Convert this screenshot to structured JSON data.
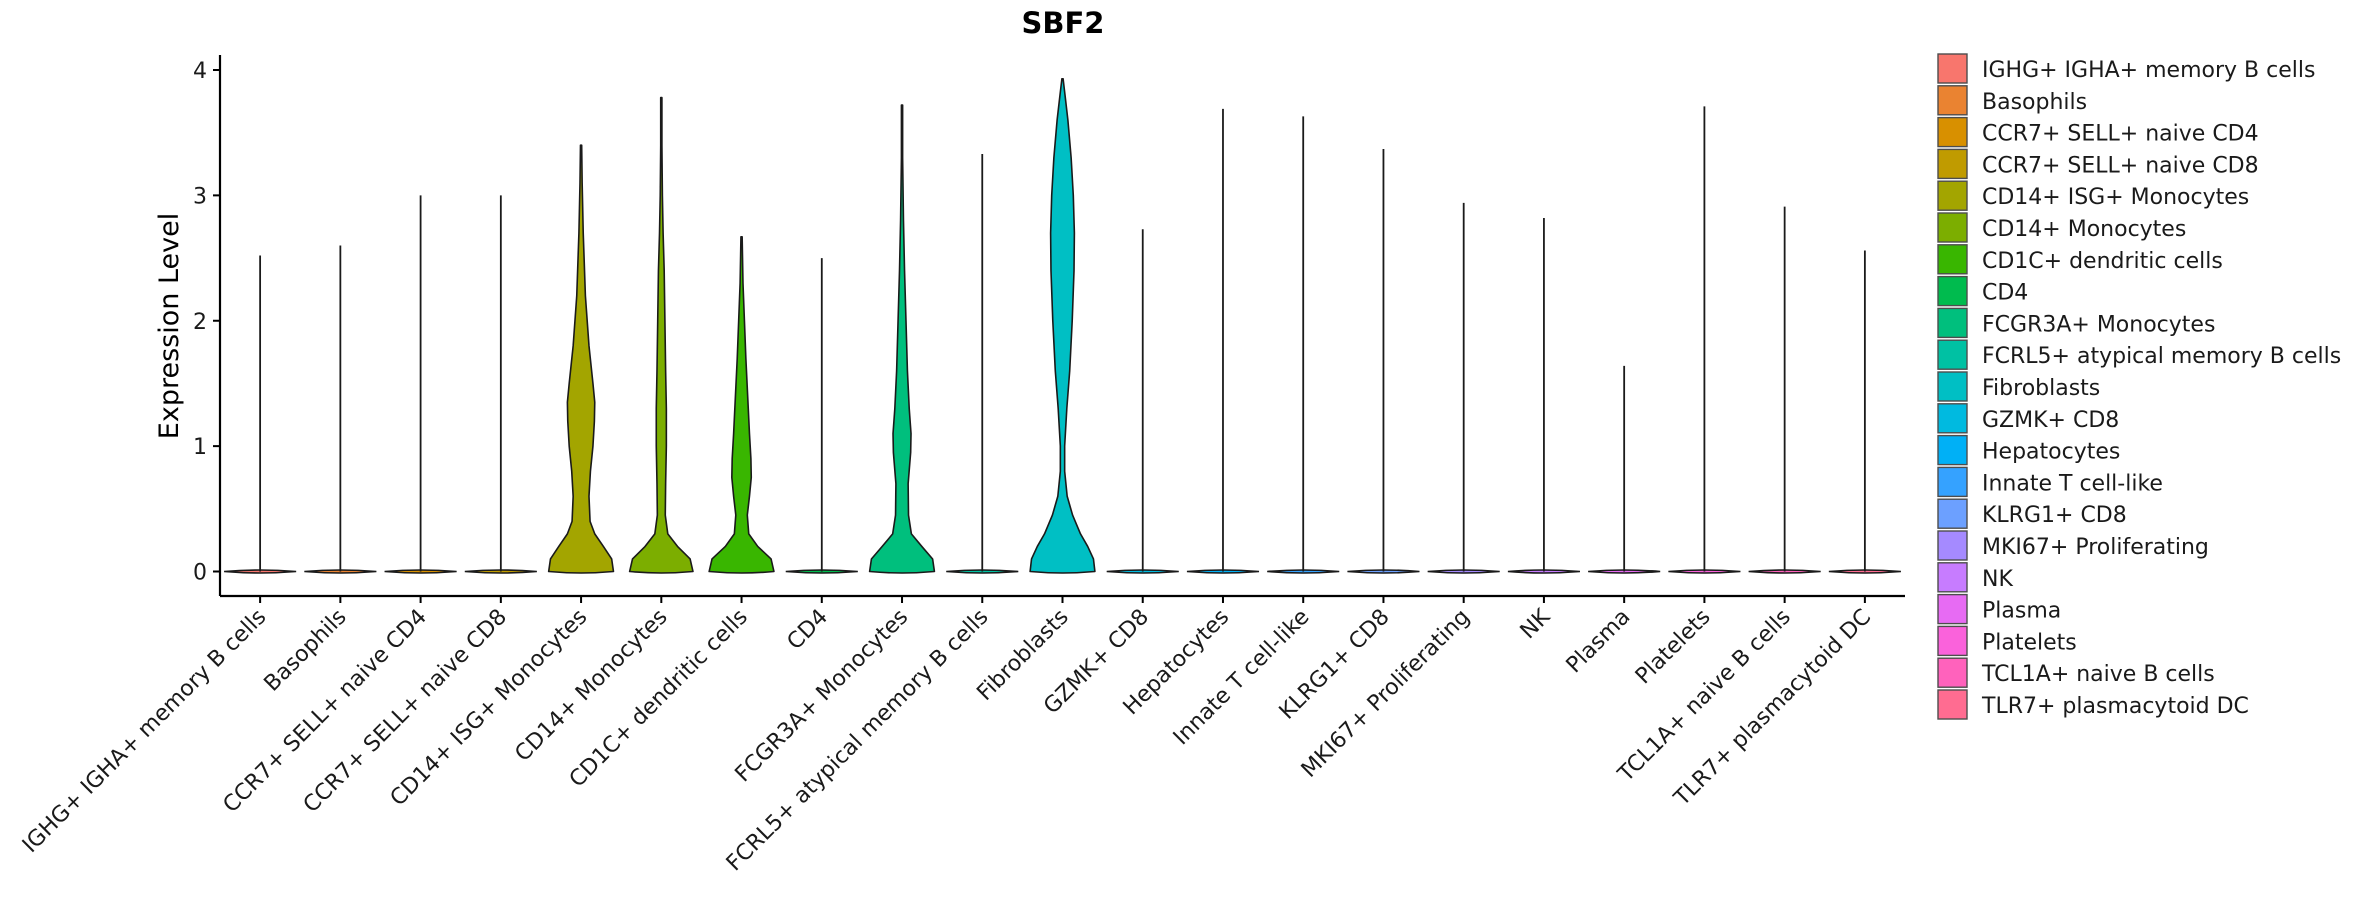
{
  "chart_data": {
    "type": "violin",
    "title": "SBF2",
    "xlabel": "",
    "ylabel": "Expression Level",
    "ylim": [
      -0.2,
      4.12
    ],
    "yticks": [
      0,
      1,
      2,
      3,
      4
    ],
    "ytick_labels": [
      "0",
      "1",
      "2",
      "3",
      "4"
    ],
    "legend_position": "right",
    "categories": [
      " IGHG+ IGHA+ memory B cells",
      "Basophils",
      "CCR7+ SELL+ naive CD4",
      "CCR7+ SELL+ naive CD8",
      "CD14+ ISG+ Monocytes",
      "CD14+ Monocytes",
      "CD1C+ dendritic cells",
      "CD4",
      "FCGR3A+ Monocytes",
      "FCRL5+ atypical memory B cells",
      "Fibroblasts",
      "GZMK+ CD8",
      "Hepatocytes",
      "Innate T cell-like",
      "KLRG1+ CD8",
      "MKI67+ Proliferating",
      "NK",
      "Plasma",
      "Platelets",
      "TCL1A+ naive B cells",
      "TLR7+ plasmacytoid DC"
    ],
    "colors": [
      "#F8766D",
      "#EA8331",
      "#D89000",
      "#C09B00",
      "#A3A500",
      "#7CAE00",
      "#39B600",
      "#00BB4E",
      "#00BF7D",
      "#00C1A3",
      "#00BFC4",
      "#00BAE0",
      "#00B0F6",
      "#35A2FF",
      "#6CA0FF",
      "#A58AFF",
      "#C77CFF",
      "#E76BF3",
      "#FA62DB",
      "#FF62BC",
      "#FF6C91"
    ],
    "max_values": [
      2.52,
      2.6,
      3.0,
      3.0,
      3.4,
      3.78,
      2.67,
      2.5,
      3.72,
      3.33,
      3.93,
      2.73,
      3.69,
      3.63,
      3.37,
      2.94,
      2.82,
      1.64,
      3.71,
      2.91,
      2.56
    ],
    "density_profiles": [
      [],
      [],
      [],
      [],
      [
        [
          0,
          0.9
        ],
        [
          0.1,
          0.85
        ],
        [
          0.2,
          0.62
        ],
        [
          0.3,
          0.38
        ],
        [
          0.4,
          0.25
        ],
        [
          0.6,
          0.22
        ],
        [
          0.8,
          0.26
        ],
        [
          1.0,
          0.33
        ],
        [
          1.2,
          0.37
        ],
        [
          1.35,
          0.38
        ],
        [
          1.5,
          0.33
        ],
        [
          1.8,
          0.22
        ],
        [
          2.2,
          0.12
        ],
        [
          2.7,
          0.06
        ],
        [
          3.1,
          0.03
        ],
        [
          3.4,
          0.01
        ]
      ],
      [
        [
          0,
          0.88
        ],
        [
          0.1,
          0.8
        ],
        [
          0.2,
          0.45
        ],
        [
          0.3,
          0.18
        ],
        [
          0.45,
          0.11
        ],
        [
          0.7,
          0.12
        ],
        [
          1.0,
          0.14
        ],
        [
          1.3,
          0.14
        ],
        [
          1.6,
          0.12
        ],
        [
          2.0,
          0.1
        ],
        [
          2.4,
          0.08
        ],
        [
          2.7,
          0.05
        ],
        [
          3.0,
          0.03
        ],
        [
          3.4,
          0.015
        ],
        [
          3.78,
          0.005
        ]
      ],
      [
        [
          0,
          0.9
        ],
        [
          0.1,
          0.82
        ],
        [
          0.2,
          0.45
        ],
        [
          0.3,
          0.2
        ],
        [
          0.45,
          0.16
        ],
        [
          0.6,
          0.22
        ],
        [
          0.75,
          0.27
        ],
        [
          0.9,
          0.26
        ],
        [
          1.1,
          0.22
        ],
        [
          1.4,
          0.17
        ],
        [
          1.7,
          0.12
        ],
        [
          2.0,
          0.08
        ],
        [
          2.3,
          0.04
        ],
        [
          2.67,
          0.01
        ]
      ],
      [],
      [
        [
          0,
          0.9
        ],
        [
          0.1,
          0.85
        ],
        [
          0.2,
          0.55
        ],
        [
          0.3,
          0.26
        ],
        [
          0.45,
          0.18
        ],
        [
          0.7,
          0.17
        ],
        [
          0.95,
          0.24
        ],
        [
          1.1,
          0.25
        ],
        [
          1.3,
          0.2
        ],
        [
          1.6,
          0.15
        ],
        [
          2.0,
          0.11
        ],
        [
          2.4,
          0.07
        ],
        [
          2.8,
          0.04
        ],
        [
          3.3,
          0.015
        ],
        [
          3.72,
          0.005
        ]
      ],
      [],
      [
        [
          0,
          0.9
        ],
        [
          0.1,
          0.86
        ],
        [
          0.2,
          0.7
        ],
        [
          0.3,
          0.5
        ],
        [
          0.45,
          0.28
        ],
        [
          0.6,
          0.13
        ],
        [
          0.8,
          0.06
        ],
        [
          1.0,
          0.06
        ],
        [
          1.3,
          0.12
        ],
        [
          1.6,
          0.2
        ],
        [
          2.0,
          0.27
        ],
        [
          2.4,
          0.32
        ],
        [
          2.7,
          0.33
        ],
        [
          3.0,
          0.3
        ],
        [
          3.3,
          0.24
        ],
        [
          3.6,
          0.15
        ],
        [
          3.8,
          0.07
        ],
        [
          3.93,
          0.005
        ]
      ],
      [],
      [],
      [],
      [],
      [],
      [],
      [],
      [],
      [],
      []
    ]
  }
}
